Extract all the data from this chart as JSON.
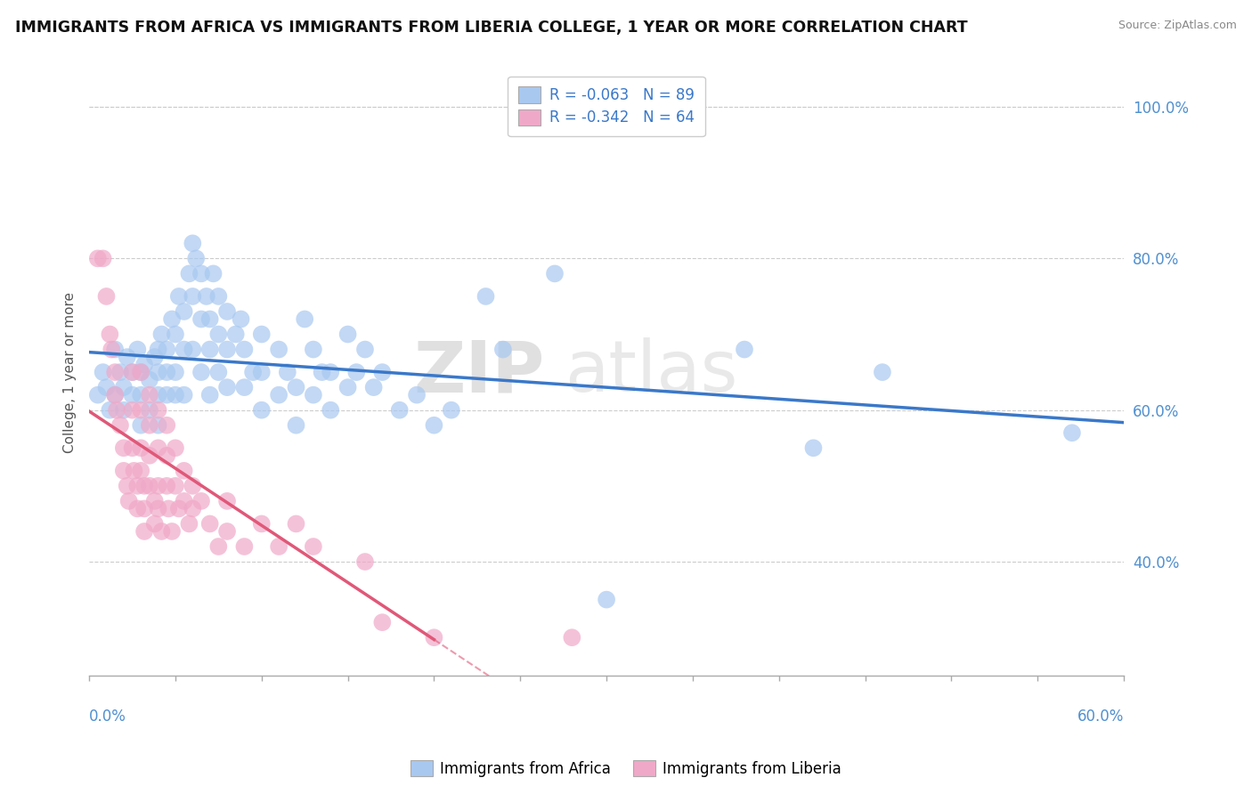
{
  "title": "IMMIGRANTS FROM AFRICA VS IMMIGRANTS FROM LIBERIA COLLEGE, 1 YEAR OR MORE CORRELATION CHART",
  "source": "Source: ZipAtlas.com",
  "ylabel": "College, 1 year or more",
  "y_ticks": [
    0.4,
    0.6,
    0.8,
    1.0
  ],
  "y_tick_labels": [
    "40.0%",
    "60.0%",
    "80.0%",
    "100.0%"
  ],
  "x_range": [
    0.0,
    0.6
  ],
  "y_range": [
    0.25,
    1.05
  ],
  "africa_color": "#a8c8f0",
  "liberia_color": "#f0a8c8",
  "africa_line_color": "#3a78c9",
  "liberia_line_color": "#e05878",
  "watermark_zip": "ZIP",
  "watermark_atlas": "atlas",
  "africa_scatter": [
    [
      0.005,
      0.62
    ],
    [
      0.008,
      0.65
    ],
    [
      0.01,
      0.63
    ],
    [
      0.012,
      0.6
    ],
    [
      0.015,
      0.68
    ],
    [
      0.015,
      0.62
    ],
    [
      0.018,
      0.65
    ],
    [
      0.02,
      0.63
    ],
    [
      0.02,
      0.6
    ],
    [
      0.022,
      0.67
    ],
    [
      0.025,
      0.65
    ],
    [
      0.025,
      0.62
    ],
    [
      0.028,
      0.68
    ],
    [
      0.03,
      0.65
    ],
    [
      0.03,
      0.62
    ],
    [
      0.03,
      0.58
    ],
    [
      0.032,
      0.66
    ],
    [
      0.035,
      0.64
    ],
    [
      0.035,
      0.6
    ],
    [
      0.038,
      0.67
    ],
    [
      0.04,
      0.68
    ],
    [
      0.04,
      0.65
    ],
    [
      0.04,
      0.62
    ],
    [
      0.04,
      0.58
    ],
    [
      0.042,
      0.7
    ],
    [
      0.045,
      0.68
    ],
    [
      0.045,
      0.65
    ],
    [
      0.045,
      0.62
    ],
    [
      0.048,
      0.72
    ],
    [
      0.05,
      0.7
    ],
    [
      0.05,
      0.65
    ],
    [
      0.05,
      0.62
    ],
    [
      0.052,
      0.75
    ],
    [
      0.055,
      0.73
    ],
    [
      0.055,
      0.68
    ],
    [
      0.055,
      0.62
    ],
    [
      0.058,
      0.78
    ],
    [
      0.06,
      0.82
    ],
    [
      0.06,
      0.75
    ],
    [
      0.06,
      0.68
    ],
    [
      0.062,
      0.8
    ],
    [
      0.065,
      0.78
    ],
    [
      0.065,
      0.72
    ],
    [
      0.065,
      0.65
    ],
    [
      0.068,
      0.75
    ],
    [
      0.07,
      0.72
    ],
    [
      0.07,
      0.68
    ],
    [
      0.07,
      0.62
    ],
    [
      0.072,
      0.78
    ],
    [
      0.075,
      0.75
    ],
    [
      0.075,
      0.7
    ],
    [
      0.075,
      0.65
    ],
    [
      0.08,
      0.73
    ],
    [
      0.08,
      0.68
    ],
    [
      0.08,
      0.63
    ],
    [
      0.085,
      0.7
    ],
    [
      0.088,
      0.72
    ],
    [
      0.09,
      0.68
    ],
    [
      0.09,
      0.63
    ],
    [
      0.095,
      0.65
    ],
    [
      0.1,
      0.7
    ],
    [
      0.1,
      0.65
    ],
    [
      0.1,
      0.6
    ],
    [
      0.11,
      0.68
    ],
    [
      0.11,
      0.62
    ],
    [
      0.115,
      0.65
    ],
    [
      0.12,
      0.63
    ],
    [
      0.12,
      0.58
    ],
    [
      0.125,
      0.72
    ],
    [
      0.13,
      0.68
    ],
    [
      0.13,
      0.62
    ],
    [
      0.135,
      0.65
    ],
    [
      0.14,
      0.65
    ],
    [
      0.14,
      0.6
    ],
    [
      0.15,
      0.7
    ],
    [
      0.15,
      0.63
    ],
    [
      0.155,
      0.65
    ],
    [
      0.16,
      0.68
    ],
    [
      0.165,
      0.63
    ],
    [
      0.17,
      0.65
    ],
    [
      0.18,
      0.6
    ],
    [
      0.19,
      0.62
    ],
    [
      0.2,
      0.58
    ],
    [
      0.21,
      0.6
    ],
    [
      0.23,
      0.75
    ],
    [
      0.24,
      0.68
    ],
    [
      0.27,
      0.78
    ],
    [
      0.3,
      0.35
    ],
    [
      0.38,
      0.68
    ],
    [
      0.42,
      0.55
    ],
    [
      0.46,
      0.65
    ],
    [
      0.57,
      0.57
    ]
  ],
  "liberia_scatter": [
    [
      0.005,
      0.8
    ],
    [
      0.008,
      0.8
    ],
    [
      0.01,
      0.75
    ],
    [
      0.012,
      0.7
    ],
    [
      0.013,
      0.68
    ],
    [
      0.015,
      0.65
    ],
    [
      0.015,
      0.62
    ],
    [
      0.016,
      0.6
    ],
    [
      0.018,
      0.58
    ],
    [
      0.02,
      0.55
    ],
    [
      0.02,
      0.52
    ],
    [
      0.022,
      0.5
    ],
    [
      0.023,
      0.48
    ],
    [
      0.025,
      0.65
    ],
    [
      0.025,
      0.6
    ],
    [
      0.025,
      0.55
    ],
    [
      0.026,
      0.52
    ],
    [
      0.028,
      0.5
    ],
    [
      0.028,
      0.47
    ],
    [
      0.03,
      0.65
    ],
    [
      0.03,
      0.6
    ],
    [
      0.03,
      0.55
    ],
    [
      0.03,
      0.52
    ],
    [
      0.032,
      0.5
    ],
    [
      0.032,
      0.47
    ],
    [
      0.032,
      0.44
    ],
    [
      0.035,
      0.62
    ],
    [
      0.035,
      0.58
    ],
    [
      0.035,
      0.54
    ],
    [
      0.035,
      0.5
    ],
    [
      0.038,
      0.48
    ],
    [
      0.038,
      0.45
    ],
    [
      0.04,
      0.6
    ],
    [
      0.04,
      0.55
    ],
    [
      0.04,
      0.5
    ],
    [
      0.04,
      0.47
    ],
    [
      0.042,
      0.44
    ],
    [
      0.045,
      0.58
    ],
    [
      0.045,
      0.54
    ],
    [
      0.045,
      0.5
    ],
    [
      0.046,
      0.47
    ],
    [
      0.048,
      0.44
    ],
    [
      0.05,
      0.55
    ],
    [
      0.05,
      0.5
    ],
    [
      0.052,
      0.47
    ],
    [
      0.055,
      0.52
    ],
    [
      0.055,
      0.48
    ],
    [
      0.058,
      0.45
    ],
    [
      0.06,
      0.5
    ],
    [
      0.06,
      0.47
    ],
    [
      0.065,
      0.48
    ],
    [
      0.07,
      0.45
    ],
    [
      0.075,
      0.42
    ],
    [
      0.08,
      0.48
    ],
    [
      0.08,
      0.44
    ],
    [
      0.09,
      0.42
    ],
    [
      0.1,
      0.45
    ],
    [
      0.11,
      0.42
    ],
    [
      0.12,
      0.45
    ],
    [
      0.13,
      0.42
    ],
    [
      0.16,
      0.4
    ],
    [
      0.17,
      0.32
    ],
    [
      0.2,
      0.3
    ],
    [
      0.28,
      0.3
    ]
  ]
}
